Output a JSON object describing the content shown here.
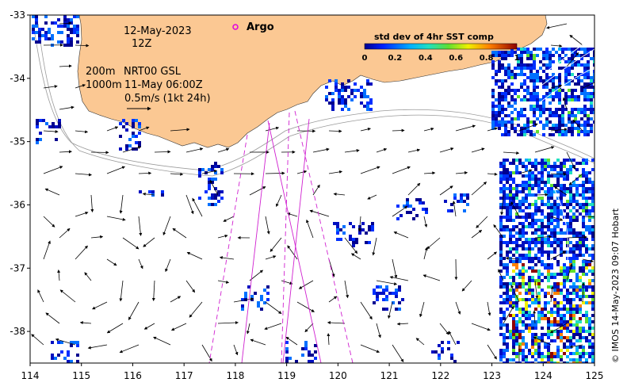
{
  "map": {
    "date_label": "12-May-2023",
    "hour_label": "12Z",
    "legend_argo": "Argo",
    "contour_200": "200m",
    "contour_1000": "1000m",
    "product": "NRT00 GSL",
    "product_time": "11-May 06:00Z",
    "scale_label": "0.5m/s (1kt 24h)",
    "colorbar": {
      "title": "std dev of 4hr SST comp",
      "ticks": [
        "0",
        "0.2",
        "0.4",
        "0.6",
        "0.8",
        "1"
      ],
      "min": 0,
      "max": 1
    },
    "credit": "© IMOS 14-May-2023 09:07 Hobart",
    "lon_ticks": [
      "114",
      "115",
      "116",
      "117",
      "118",
      "119",
      "120",
      "121",
      "122",
      "123",
      "124",
      "125"
    ],
    "lat_ticks": [
      "-33",
      "-34",
      "-35",
      "-36",
      "-37",
      "-38"
    ],
    "lon_range": [
      114,
      125
    ],
    "lat_range": [
      -38.5,
      -33
    ],
    "colors": {
      "land": "#fbc893",
      "ocean": "#ffffff",
      "track": "#d020d0",
      "argo_marker": "#e000e0",
      "contour": "#9a9a9a",
      "current_arrow": "#000000"
    }
  }
}
